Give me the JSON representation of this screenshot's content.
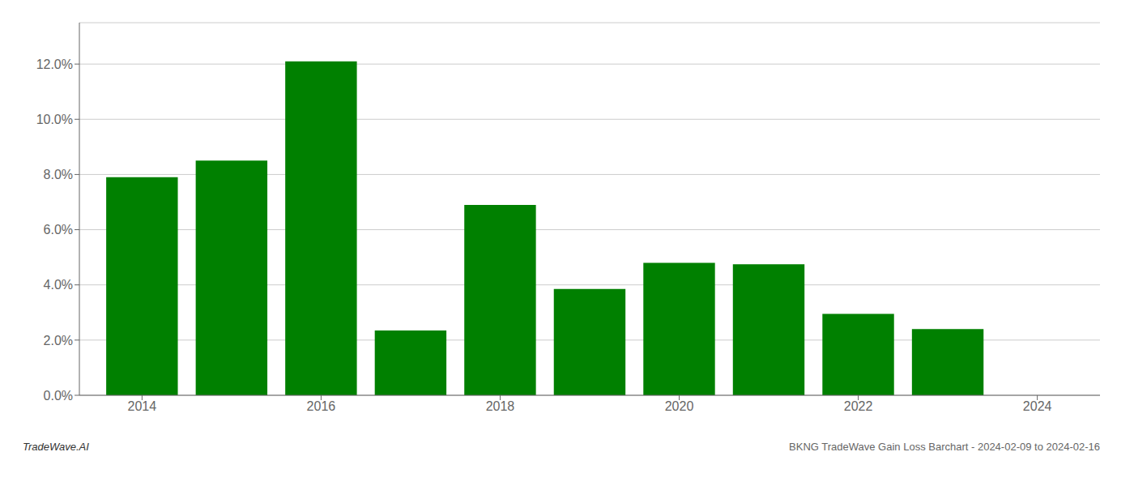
{
  "chart_data": {
    "type": "bar",
    "title": "BKNG TradeWave Gain Loss Barchart - 2024-02-09 to 2024-02-16",
    "annotations": [
      "TradeWave.AI"
    ],
    "x": [
      2014,
      2015,
      2016,
      2017,
      2018,
      2019,
      2020,
      2021,
      2022,
      2023
    ],
    "values": [
      0.079,
      0.085,
      0.121,
      0.0235,
      0.069,
      0.0385,
      0.048,
      0.0475,
      0.0295,
      0.024
    ],
    "color": "#008000",
    "xlim": [
      2013.3,
      2024.7
    ],
    "xticks": [
      2014,
      2016,
      2018,
      2020,
      2022,
      2024
    ],
    "ylim": [
      0,
      0.135
    ],
    "yticks": [
      {
        "value": 0.0,
        "label": "0.0%"
      },
      {
        "value": 0.02,
        "label": "2.0%"
      },
      {
        "value": 0.04,
        "label": "4.0%"
      },
      {
        "value": 0.06,
        "label": "6.0%"
      },
      {
        "value": 0.08,
        "label": "8.0%"
      },
      {
        "value": 0.1,
        "label": "10.0%"
      },
      {
        "value": 0.12,
        "label": "12.0%"
      }
    ],
    "grid": "y"
  }
}
